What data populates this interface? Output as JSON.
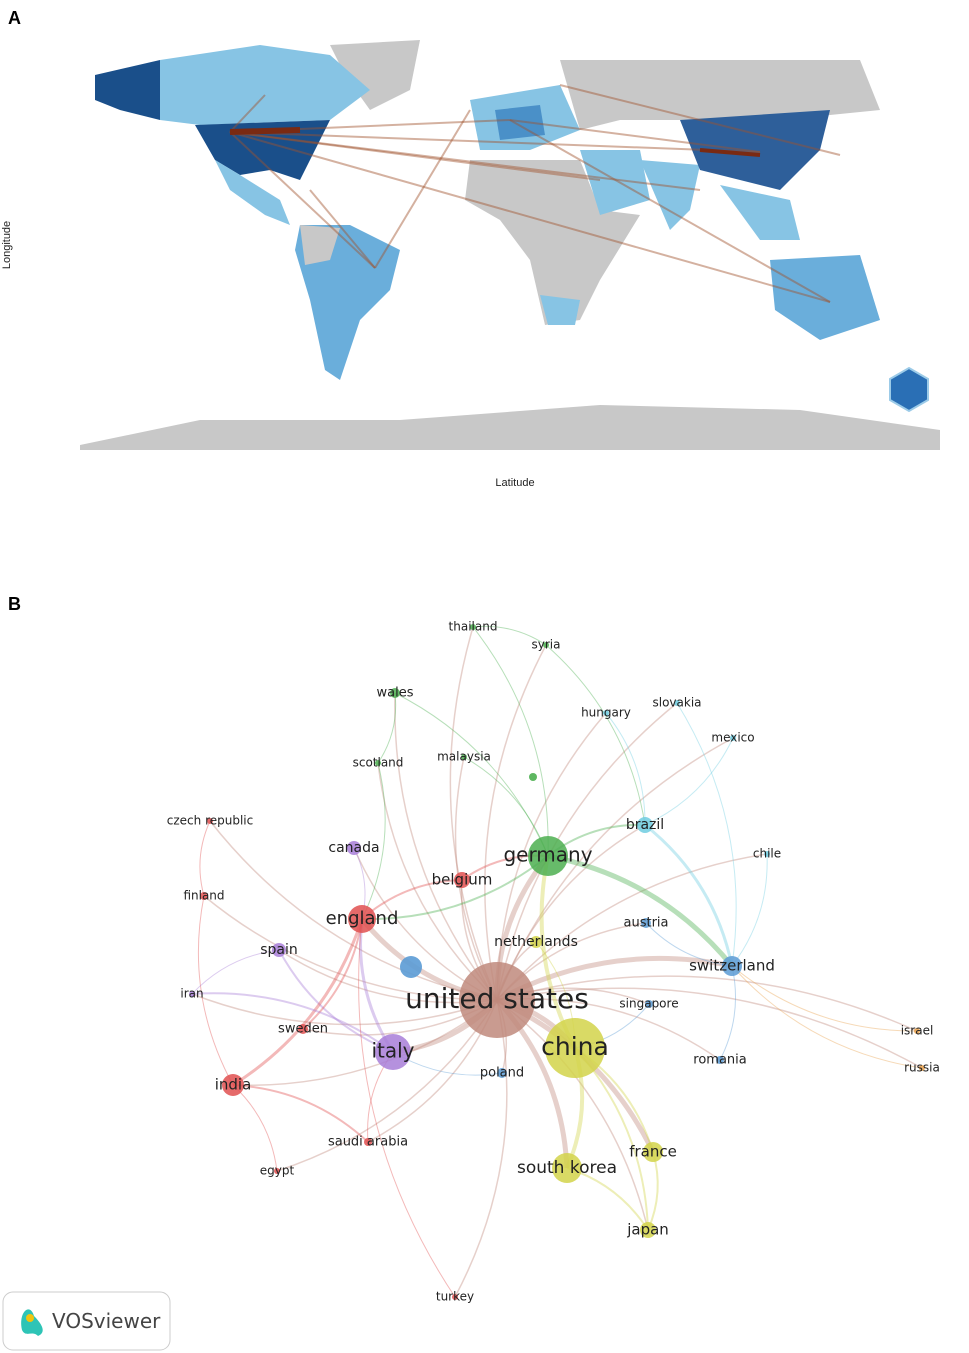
{
  "panel_a": {
    "label": "A",
    "y_axis_label": "Longitude",
    "x_axis_label": "Latitude"
  },
  "panel_b": {
    "label": "B",
    "logo_text": "VOSviewer",
    "nodes": [
      {
        "label": "united states"
      },
      {
        "label": "china"
      },
      {
        "label": "germany"
      },
      {
        "label": "italy"
      },
      {
        "label": "england"
      },
      {
        "label": "south korea"
      },
      {
        "label": "switzerland"
      },
      {
        "label": "france"
      },
      {
        "label": "japan"
      },
      {
        "label": "india"
      },
      {
        "label": "belgium"
      },
      {
        "label": "brazil"
      },
      {
        "label": "netherlands"
      },
      {
        "label": "spain"
      },
      {
        "label": "canada"
      },
      {
        "label": "austria"
      },
      {
        "label": "sweden"
      },
      {
        "label": "poland"
      },
      {
        "label": "singapore"
      },
      {
        "label": "romania"
      },
      {
        "label": "saudi arabia"
      },
      {
        "label": "finland"
      },
      {
        "label": "iran"
      },
      {
        "label": "egypt"
      },
      {
        "label": "czech republic"
      },
      {
        "label": "wales"
      },
      {
        "label": "scotland"
      },
      {
        "label": "malaysia"
      },
      {
        "label": "thailand"
      },
      {
        "label": "syria"
      },
      {
        "label": "hungary"
      },
      {
        "label": "slovakia"
      },
      {
        "label": "mexico"
      },
      {
        "label": "chile"
      },
      {
        "label": "israel"
      },
      {
        "label": "russia"
      },
      {
        "label": "turkey"
      }
    ]
  }
}
